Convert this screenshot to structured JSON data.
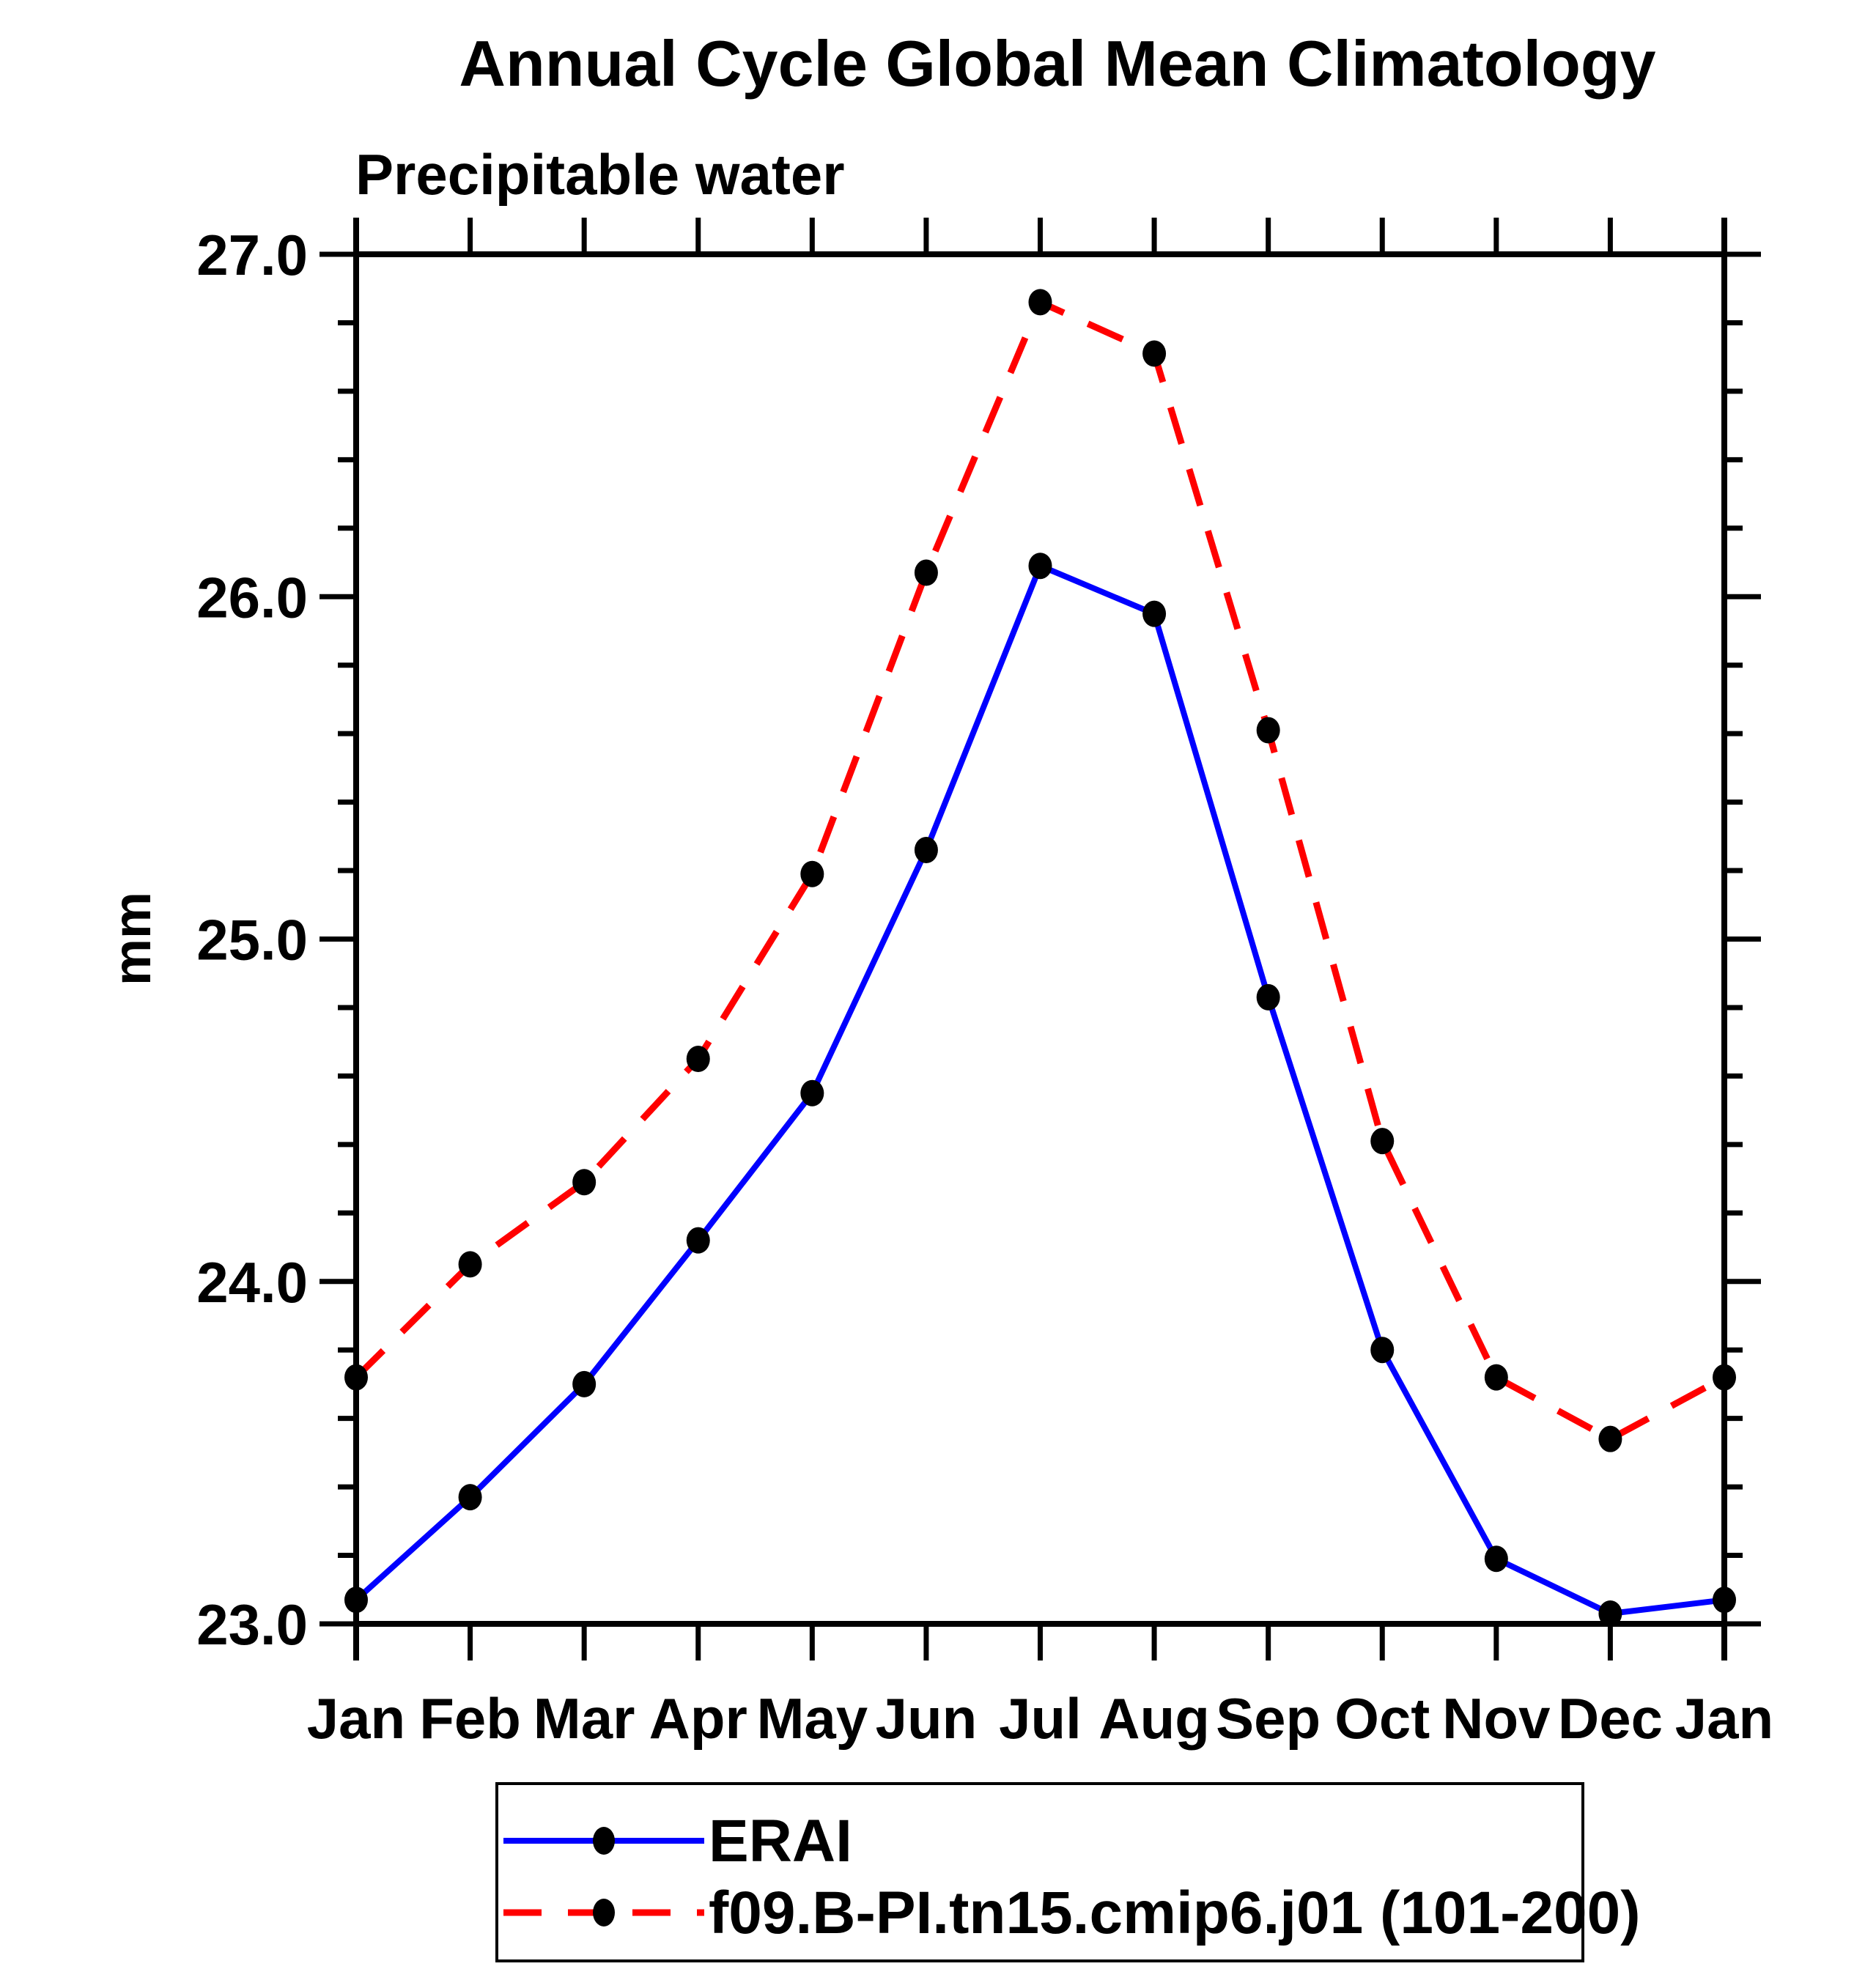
{
  "title": "Annual Cycle Global Mean Climatology",
  "subtitle": "Precipitable water",
  "ylabel": "mm",
  "chart_data": {
    "type": "line",
    "categories": [
      "Jan",
      "Feb",
      "Mar",
      "Apr",
      "May",
      "Jun",
      "Jul",
      "Aug",
      "Sep",
      "Oct",
      "Nov",
      "Dec",
      "Jan"
    ],
    "series": [
      {
        "name": "ERAI",
        "line_color": "#0000ff",
        "line_style": "solid",
        "marker": "filled-circle",
        "marker_color": "#000000",
        "values": [
          23.07,
          23.37,
          23.7,
          24.12,
          24.55,
          25.26,
          26.09,
          25.95,
          24.83,
          23.8,
          23.19,
          23.03,
          23.07
        ]
      },
      {
        "name": "f09.B-PI.tn15.cmip6.j01 (101-200)",
        "line_color": "#ff0000",
        "line_style": "dashed",
        "marker": "filled-circle",
        "marker_color": "#000000",
        "values": [
          23.72,
          24.05,
          24.29,
          24.65,
          25.19,
          26.07,
          26.86,
          26.71,
          25.61,
          24.41,
          23.72,
          23.54,
          23.72
        ]
      }
    ],
    "xlabel": "",
    "ylabel": "mm",
    "ylim": [
      23.0,
      27.0
    ],
    "yticks": [
      23.0,
      24.0,
      25.0,
      26.0,
      27.0
    ],
    "ytick_labels": [
      "23.0",
      "24.0",
      "25.0",
      "26.0",
      "27.0"
    ],
    "y_minor_tick_step": 0.2,
    "grid": false,
    "legend_position": "bottom"
  },
  "legend": {
    "entries": [
      "ERAI",
      "f09.B-PI.tn15.cmip6.j01 (101-200)"
    ]
  }
}
